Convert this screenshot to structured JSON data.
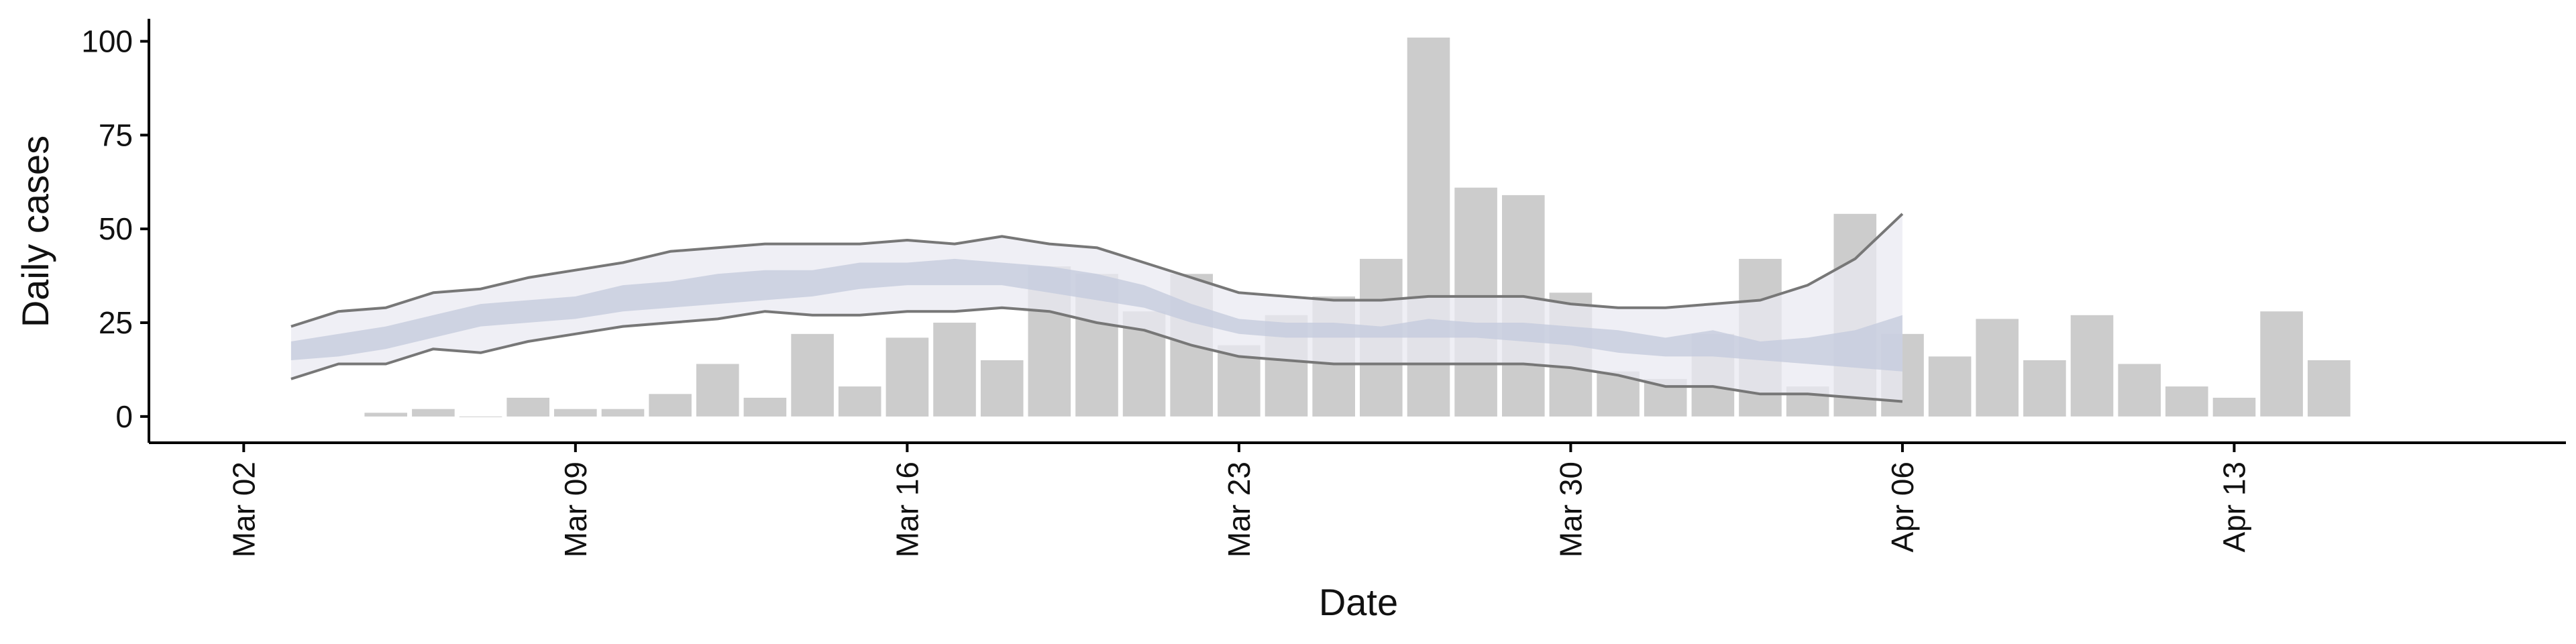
{
  "chart_data": {
    "type": "bar",
    "xlabel": "Date",
    "ylabel": "Daily cases",
    "x_tick_labels": [
      "Mar 02",
      "Mar 09",
      "Mar 16",
      "Mar 23",
      "Mar 30",
      "Apr 06",
      "Apr 13"
    ],
    "x_tick_dates": [
      "2020-03-02",
      "2020-03-09",
      "2020-03-16",
      "2020-03-23",
      "2020-03-30",
      "2020-04-06",
      "2020-04-13"
    ],
    "y_ticks": [
      0,
      25,
      50,
      75,
      100
    ],
    "ylim": [
      -7,
      106
    ],
    "xlim": [
      "2020-02-29",
      "2020-04-20"
    ],
    "grid": false,
    "bars": {
      "color": "#cccccc",
      "dates": [
        "2020-03-05",
        "2020-03-06",
        "2020-03-07",
        "2020-03-08",
        "2020-03-09",
        "2020-03-10",
        "2020-03-11",
        "2020-03-12",
        "2020-03-13",
        "2020-03-14",
        "2020-03-15",
        "2020-03-16",
        "2020-03-17",
        "2020-03-18",
        "2020-03-19",
        "2020-03-20",
        "2020-03-21",
        "2020-03-22",
        "2020-03-23",
        "2020-03-24",
        "2020-03-25",
        "2020-03-26",
        "2020-03-27",
        "2020-03-28",
        "2020-03-29",
        "2020-03-30",
        "2020-03-31",
        "2020-04-01",
        "2020-04-02",
        "2020-04-03",
        "2020-04-04",
        "2020-04-05",
        "2020-04-06",
        "2020-04-07",
        "2020-04-08",
        "2020-04-09",
        "2020-04-10",
        "2020-04-11",
        "2020-04-12",
        "2020-04-13",
        "2020-04-14",
        "2020-04-15"
      ],
      "values": [
        1,
        2,
        0,
        5,
        2,
        2,
        6,
        14,
        5,
        22,
        8,
        21,
        25,
        15,
        40,
        38,
        28,
        38,
        19,
        27,
        32,
        42,
        101,
        61,
        59,
        33,
        12,
        10,
        22,
        42,
        8,
        54,
        22,
        16,
        26,
        15,
        27,
        14,
        8,
        5,
        28,
        15
      ]
    },
    "estimate": {
      "dates": [
        "2020-03-03",
        "2020-03-04",
        "2020-03-05",
        "2020-03-06",
        "2020-03-07",
        "2020-03-08",
        "2020-03-09",
        "2020-03-10",
        "2020-03-11",
        "2020-03-12",
        "2020-03-13",
        "2020-03-14",
        "2020-03-15",
        "2020-03-16",
        "2020-03-17",
        "2020-03-18",
        "2020-03-19",
        "2020-03-20",
        "2020-03-21",
        "2020-03-22",
        "2020-03-23",
        "2020-03-24",
        "2020-03-25",
        "2020-03-26",
        "2020-03-27",
        "2020-03-28",
        "2020-03-29",
        "2020-03-30",
        "2020-03-31",
        "2020-04-01",
        "2020-04-02",
        "2020-04-03",
        "2020-04-04",
        "2020-04-05",
        "2020-04-06"
      ],
      "outer_upper": [
        24,
        28,
        29,
        33,
        34,
        37,
        39,
        41,
        44,
        45,
        46,
        46,
        46,
        47,
        46,
        48,
        46,
        45,
        41,
        37,
        33,
        32,
        31,
        31,
        32,
        32,
        32,
        30,
        29,
        29,
        30,
        31,
        35,
        42,
        54
      ],
      "outer_lower": [
        10,
        14,
        14,
        18,
        17,
        20,
        22,
        24,
        25,
        26,
        28,
        27,
        27,
        28,
        28,
        29,
        28,
        25,
        23,
        19,
        16,
        15,
        14,
        14,
        14,
        14,
        14,
        13,
        11,
        8,
        8,
        6,
        6,
        5,
        4
      ],
      "inner_upper": [
        20,
        22,
        24,
        27,
        30,
        31,
        32,
        35,
        36,
        38,
        39,
        39,
        41,
        41,
        42,
        41,
        40,
        38,
        35,
        30,
        26,
        25,
        25,
        24,
        26,
        25,
        25,
        24,
        23,
        21,
        23,
        20,
        21,
        23,
        27
      ],
      "inner_lower": [
        15,
        16,
        18,
        21,
        24,
        25,
        26,
        28,
        29,
        30,
        31,
        32,
        34,
        35,
        35,
        35,
        33,
        31,
        29,
        25,
        22,
        21,
        21,
        21,
        21,
        21,
        20,
        19,
        17,
        16,
        16,
        15,
        14,
        13,
        12
      ],
      "outer_color": "#e9eaf2",
      "inner_color": "#c6ccdd",
      "line_color": "#777777"
    }
  }
}
